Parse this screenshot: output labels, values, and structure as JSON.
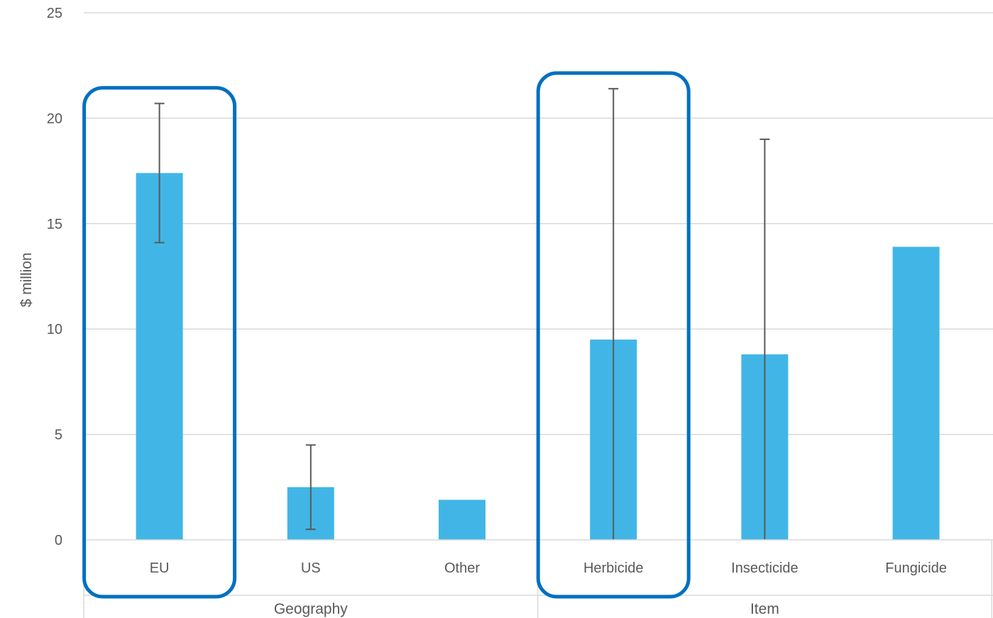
{
  "chart_data": {
    "type": "bar",
    "title": "",
    "ylabel": "$ million",
    "xlabel": "",
    "ylim": [
      0,
      25
    ],
    "yticks": [
      0,
      5,
      10,
      15,
      20,
      25
    ],
    "grid": true,
    "legend": "none",
    "categories": [
      "EU",
      "US",
      "Other",
      "Herbicide",
      "Insecticide",
      "Fungicide"
    ],
    "groups": [
      {
        "label": "Geography",
        "categories": [
          "EU",
          "US",
          "Other"
        ]
      },
      {
        "label": "Item",
        "categories": [
          "Herbicide",
          "Insecticide",
          "Fungicide"
        ]
      }
    ],
    "series": [
      {
        "values": [
          17.4,
          2.5,
          1.9,
          9.5,
          8.8,
          13.9
        ],
        "error_low": [
          14.1,
          0.5,
          null,
          0,
          0,
          null
        ],
        "error_high": [
          20.7,
          4.5,
          null,
          21.4,
          19.0,
          null
        ]
      }
    ],
    "highlighted_categories": [
      "EU",
      "Herbicide"
    ],
    "colors": {
      "bar": "#41b6e6",
      "highlight_outline": "#0070c0",
      "grid": "#d9d9d9",
      "error_bar": "#595959",
      "text": "#595959"
    }
  }
}
